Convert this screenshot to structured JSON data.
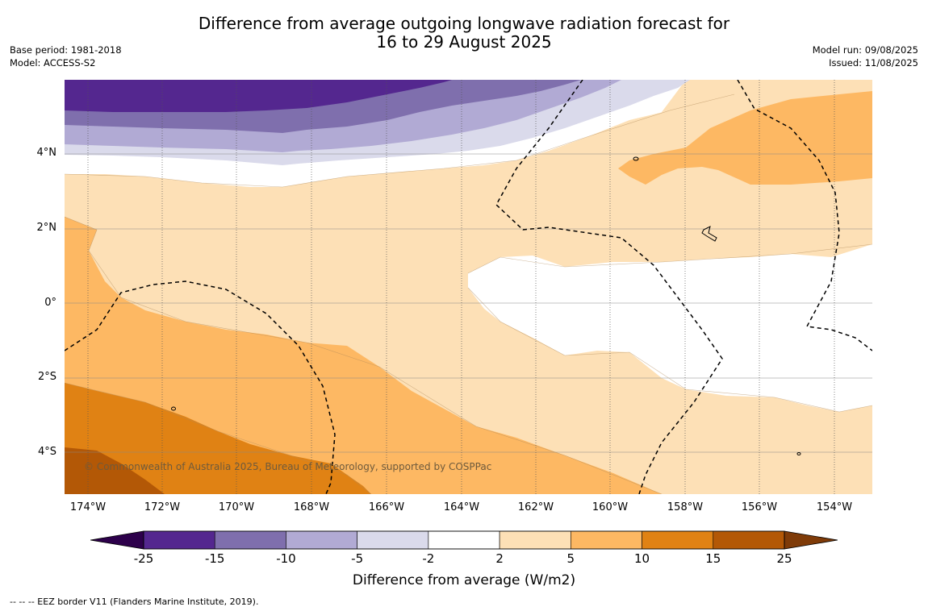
{
  "title_line1": "Difference from average outgoing longwave radiation forecast for",
  "title_line2": "16 to 29 August 2025",
  "meta_left": {
    "base_period": "Base period: 1981-2018",
    "model": "Model: ACCESS-S2"
  },
  "meta_right": {
    "model_run": "Model run: 09/08/2025",
    "issued": "Issued: 11/08/2025"
  },
  "map": {
    "latitude_labels": [
      "4°N",
      "2°N",
      "0°",
      "2°S",
      "4°S"
    ],
    "longitude_labels": [
      "174°W",
      "172°W",
      "170°W",
      "168°W",
      "166°W",
      "164°W",
      "162°W",
      "160°W",
      "158°W",
      "156°W",
      "154°W"
    ],
    "copyright": "© Commonwealth of Australia 2025, Bureau of Meteorology, supported by COSPPac",
    "eez_border_style": "dashed"
  },
  "colorbar": {
    "title": "Difference from average (W/m2)",
    "tick_labels": [
      "-25",
      "-15",
      "-10",
      "-5",
      "-2",
      "2",
      "5",
      "10",
      "15",
      "25"
    ],
    "bins": [
      {
        "from": -25,
        "to": -15,
        "color": "#54278f"
      },
      {
        "from": -15,
        "to": -10,
        "color": "#7f6fad"
      },
      {
        "from": -10,
        "to": -5,
        "color": "#b1aad4"
      },
      {
        "from": -5,
        "to": -2,
        "color": "#dadaeb"
      },
      {
        "from": -2,
        "to": 2,
        "color": "#ffffff"
      },
      {
        "from": 2,
        "to": 5,
        "color": "#fde0b6"
      },
      {
        "from": 5,
        "to": 10,
        "color": "#fdb863"
      },
      {
        "from": 10,
        "to": 15,
        "color": "#e08214"
      },
      {
        "from": 15,
        "to": 25,
        "color": "#b35806"
      }
    ],
    "extend_min_color": "#2d004b",
    "extend_max_color": "#7f3b08"
  },
  "footnote": "--  --  -- EEZ border V11 (Flanders Marine Institute, 2019)."
}
